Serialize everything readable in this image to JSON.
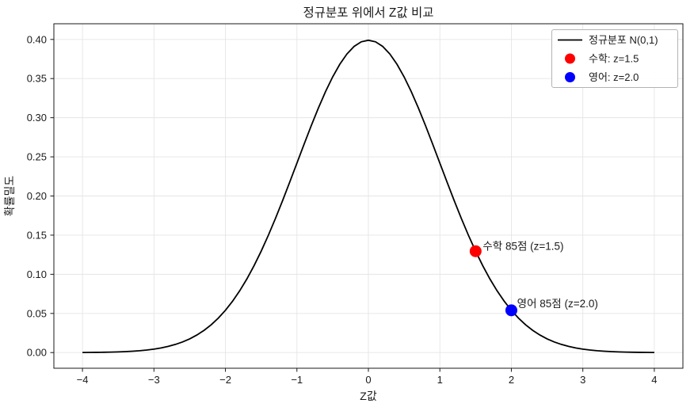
{
  "figure": {
    "background": "#ffffff"
  },
  "chart_data": {
    "type": "line",
    "title": "정규분포 위에서 Z값 비교",
    "xlabel": "Z값",
    "ylabel": "확률밀도",
    "xlim": [
      -4.4,
      4.4
    ],
    "ylim": [
      -0.02,
      0.42
    ],
    "grid": true,
    "x_ticks": [
      "−4",
      "−3",
      "−2",
      "−1",
      "0",
      "1",
      "2",
      "3",
      "4"
    ],
    "x_tick_values": [
      -4,
      -3,
      -2,
      -1,
      0,
      1,
      2,
      3,
      4
    ],
    "y_ticks": [
      "0.00",
      "0.05",
      "0.10",
      "0.15",
      "0.20",
      "0.25",
      "0.30",
      "0.35",
      "0.40"
    ],
    "y_tick_values": [
      0,
      0.05,
      0.1,
      0.15,
      0.2,
      0.25,
      0.3,
      0.35,
      0.4
    ],
    "curve": {
      "name": "정규분포 N(0,1)",
      "color": "#000000",
      "x_min": -4.0,
      "x_max": 4.0,
      "x_step": 0.1,
      "y": [
        0.00013,
        0.0002,
        0.00029,
        0.00042,
        0.00061,
        0.00087,
        0.00123,
        0.00172,
        0.00238,
        0.00327,
        0.00443,
        0.00595,
        0.00792,
        0.01042,
        0.01358,
        0.01753,
        0.02239,
        0.02833,
        0.03547,
        0.04398,
        0.05399,
        0.06562,
        0.07895,
        0.09405,
        0.11092,
        0.12952,
        0.14973,
        0.17137,
        0.19419,
        0.21785,
        0.24197,
        0.26609,
        0.28969,
        0.31225,
        0.33322,
        0.35207,
        0.36827,
        0.38139,
        0.39104,
        0.39695,
        0.39894,
        0.39695,
        0.39104,
        0.38139,
        0.36827,
        0.35207,
        0.33322,
        0.31225,
        0.28969,
        0.26609,
        0.24197,
        0.21785,
        0.19419,
        0.17137,
        0.14973,
        0.12952,
        0.11092,
        0.09405,
        0.07895,
        0.06562,
        0.05399,
        0.04398,
        0.03547,
        0.02833,
        0.02239,
        0.01753,
        0.01358,
        0.01042,
        0.00792,
        0.00595,
        0.00443,
        0.00327,
        0.00238,
        0.00172,
        0.00123,
        0.00087,
        0.00061,
        0.00042,
        0.00029,
        0.0002,
        0.00013
      ]
    },
    "points": [
      {
        "label": "수학: z=1.5",
        "x": 1.5,
        "y": 0.1295,
        "color": "#ff0000"
      },
      {
        "label": "영어: z=2.0",
        "x": 2.0,
        "y": 0.054,
        "color": "#0000ff"
      }
    ],
    "annotations": [
      {
        "text": "수학 85점 (z=1.5)",
        "x": 1.6,
        "y": 0.131,
        "color": "#ff0000"
      },
      {
        "text": "영어 85점 (z=2.0)",
        "x": 2.08,
        "y": 0.058,
        "color": "#0000ff"
      }
    ],
    "legend": {
      "position": "upper right",
      "items": [
        {
          "label": "정규분포 N(0,1)",
          "marker": "line",
          "color": "#000000"
        },
        {
          "label": "수학: z=1.5",
          "marker": "dot",
          "color": "#ff0000"
        },
        {
          "label": "영어: z=2.0",
          "marker": "dot",
          "color": "#0000ff"
        }
      ]
    }
  }
}
